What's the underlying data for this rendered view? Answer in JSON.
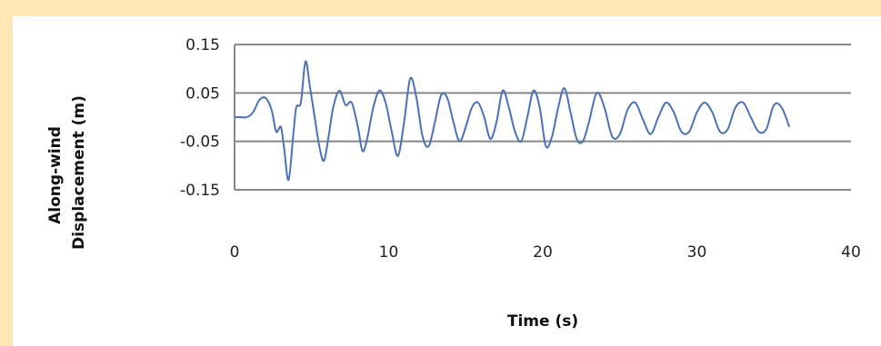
{
  "chart_data": {
    "type": "line",
    "title": "",
    "xlabel": "Time (s)",
    "ylabel_lines": [
      "Along-wind",
      "Displacement (m)"
    ],
    "xlim": [
      0,
      40
    ],
    "ylim": [
      -0.15,
      0.15
    ],
    "x_ticks": [
      0,
      10,
      20,
      30,
      40
    ],
    "x_tick_labels": [
      "0",
      "10",
      "20",
      "30",
      "40"
    ],
    "y_ticks": [
      0.15,
      0.05,
      -0.05,
      -0.15
    ],
    "y_tick_labels": [
      "0.15",
      "0.05",
      "-0.05",
      "-0.15"
    ],
    "grid": "horizontal",
    "legend": "none",
    "colors": {
      "series": "#4a72b8",
      "grid": "#888888",
      "page_background": "#fde8b4"
    },
    "series": [
      {
        "x": [
          0,
          0.3,
          0.8,
          1.2,
          1.6,
          2.0,
          2.4,
          2.7,
          3.0,
          3.2,
          3.5,
          3.8,
          4.0,
          4.3,
          4.6,
          4.9,
          5.2,
          5.5,
          5.8,
          6.1,
          6.4,
          6.8,
          7.2,
          7.6,
          8.0,
          8.3,
          8.6,
          9.0,
          9.4,
          9.8,
          10.2,
          10.6,
          11.0,
          11.4,
          11.8,
          12.2,
          12.6,
          13.0,
          13.4,
          13.8,
          14.2,
          14.6,
          15.0,
          15.4,
          15.8,
          16.2,
          16.6,
          17.0,
          17.4,
          17.8,
          18.2,
          18.6,
          19.0,
          19.4,
          19.8,
          20.2,
          20.6,
          21.0,
          21.4,
          21.8,
          22.2,
          22.6,
          23.0,
          23.5,
          24.0,
          24.5,
          25.0,
          25.5,
          26.0,
          26.5,
          27.0,
          27.5,
          28.0,
          28.5,
          29.0,
          29.5,
          30.0,
          30.5,
          31.0,
          31.5,
          32.0,
          32.5,
          33.0,
          33.5,
          34.0,
          34.5,
          35.0,
          35.5,
          36.0
        ],
        "y": [
          0.0,
          0.0,
          0.0,
          0.01,
          0.035,
          0.04,
          0.015,
          -0.03,
          -0.02,
          -0.06,
          -0.13,
          -0.04,
          0.02,
          0.03,
          0.115,
          0.06,
          0.0,
          -0.06,
          -0.09,
          -0.04,
          0.02,
          0.055,
          0.025,
          0.03,
          -0.02,
          -0.07,
          -0.045,
          0.02,
          0.055,
          0.03,
          -0.03,
          -0.08,
          -0.01,
          0.08,
          0.04,
          -0.04,
          -0.06,
          -0.01,
          0.045,
          0.04,
          -0.01,
          -0.05,
          -0.02,
          0.02,
          0.03,
          0.0,
          -0.045,
          -0.01,
          0.055,
          0.02,
          -0.03,
          -0.05,
          0.0,
          0.055,
          0.02,
          -0.06,
          -0.04,
          0.02,
          0.06,
          0.01,
          -0.045,
          -0.05,
          -0.01,
          0.05,
          0.02,
          -0.04,
          -0.035,
          0.015,
          0.03,
          -0.005,
          -0.035,
          0.0,
          0.03,
          0.01,
          -0.03,
          -0.03,
          0.01,
          0.03,
          0.01,
          -0.03,
          -0.025,
          0.02,
          0.03,
          0.0,
          -0.03,
          -0.025,
          0.025,
          0.02,
          -0.02
        ]
      }
    ]
  }
}
